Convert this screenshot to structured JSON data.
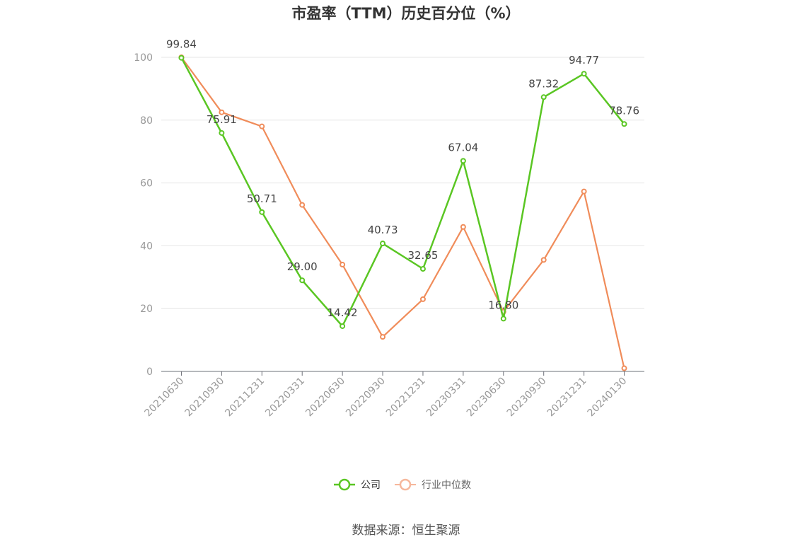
{
  "chart_data": {
    "type": "line",
    "title": "市盈率（TTM）历史百分位（%）",
    "categories": [
      "20210630",
      "20210930",
      "20211231",
      "20220331",
      "20220630",
      "20220930",
      "20221231",
      "20230331",
      "20230630",
      "20230930",
      "20231231",
      "20240130"
    ],
    "ylim": [
      0,
      100
    ],
    "yticks": [
      0,
      20,
      40,
      60,
      80,
      100
    ],
    "grid": true,
    "legend_position": "bottom-center",
    "series": [
      {
        "name": "公司",
        "color": "#5ac623",
        "values": [
          99.84,
          75.91,
          50.71,
          29.0,
          14.42,
          40.73,
          32.65,
          67.04,
          16.8,
          87.32,
          94.77,
          78.76
        ],
        "labels": [
          "99.84",
          "75.91",
          "50.71",
          "29.00",
          "14.42",
          "40.73",
          "32.65",
          "67.04",
          "16.80",
          "87.32",
          "94.77",
          "78.76"
        ]
      },
      {
        "name": "行业中位数",
        "color": "#f08c5a",
        "values": [
          100,
          82.5,
          78,
          53,
          34,
          11,
          23,
          46,
          19,
          35.5,
          57.3,
          1
        ]
      }
    ]
  },
  "source_text": "数据来源：恒生聚源"
}
